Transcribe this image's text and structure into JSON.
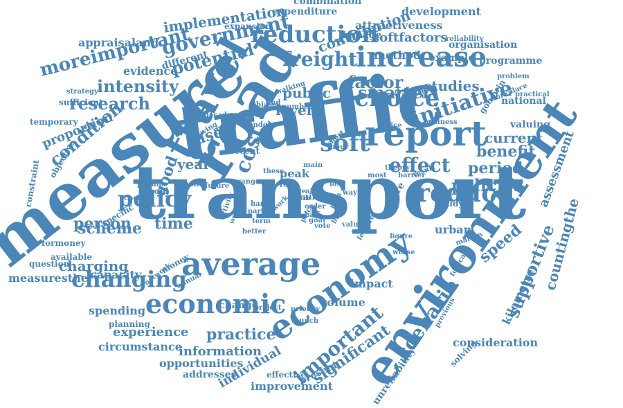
{
  "color": "#4a86b8",
  "background": "#ffffff",
  "words": [
    {
      "text": "transport",
      "weight": 100
    },
    {
      "text": "traffic",
      "weight": 95
    },
    {
      "text": "measure",
      "weight": 85
    },
    {
      "text": "road",
      "weight": 70
    },
    {
      "text": "environment",
      "weight": 65
    },
    {
      "text": "travel",
      "weight": 55
    },
    {
      "text": "report",
      "weight": 50
    },
    {
      "text": "average",
      "weight": 45
    },
    {
      "text": "economy",
      "weight": 45
    },
    {
      "text": "increase",
      "weight": 40
    },
    {
      "text": "economic",
      "weight": 38
    },
    {
      "text": "reduction",
      "weight": 36
    },
    {
      "text": "changing",
      "weight": 34
    },
    {
      "text": "policy",
      "weight": 34
    },
    {
      "text": "choice",
      "weight": 33
    },
    {
      "text": "soft",
      "weight": 32
    },
    {
      "text": "reduce",
      "weight": 32
    },
    {
      "text": "smarter",
      "weight": 32
    },
    {
      "text": "initiative",
      "weight": 30
    },
    {
      "text": "government",
      "weight": 30
    },
    {
      "text": "cost",
      "weight": 28
    },
    {
      "text": "freight",
      "weight": 28
    },
    {
      "text": "important",
      "weight": 28
    },
    {
      "text": "scenario",
      "weight": 26
    },
    {
      "text": "effect",
      "weight": 26
    },
    {
      "text": "moreimportant",
      "weight": 26
    },
    {
      "text": "condition",
      "weight": 24
    },
    {
      "text": "potential",
      "weight": 24
    },
    {
      "text": "intensity",
      "weight": 24
    },
    {
      "text": "research",
      "weight": 24
    },
    {
      "text": "factor",
      "weight": 24
    },
    {
      "text": "supportive",
      "weight": 24
    },
    {
      "text": "policies",
      "weight": 22
    },
    {
      "text": "significant",
      "weight": 22
    },
    {
      "text": "benefit",
      "weight": 22
    },
    {
      "text": "scheme",
      "weight": 22
    },
    {
      "text": "practice",
      "weight": 22
    },
    {
      "text": "period",
      "weight": 22
    },
    {
      "text": "case",
      "weight": 22
    },
    {
      "text": "time",
      "weight": 22
    },
    {
      "text": "person",
      "weight": 22
    },
    {
      "text": "level",
      "weight": 22
    },
    {
      "text": "year",
      "weight": 20
    },
    {
      "text": "charging",
      "weight": 20
    },
    {
      "text": "current",
      "weight": 20
    },
    {
      "text": "public",
      "weight": 20
    },
    {
      "text": "countingthe",
      "weight": 20
    },
    {
      "text": "studies",
      "weight": 20
    },
    {
      "text": "speed",
      "weight": 20
    },
    {
      "text": "good",
      "weight": 20
    },
    {
      "text": "implementation",
      "weight": 18
    },
    {
      "text": "contribution",
      "weight": 18
    },
    {
      "text": "softfactors",
      "weight": 18
    },
    {
      "text": "experience",
      "weight": 18
    },
    {
      "text": "information",
      "weight": 18
    },
    {
      "text": "proportion",
      "weight": 18
    },
    {
      "text": "assessment",
      "weight": 18
    },
    {
      "text": "individual",
      "weight": 18
    },
    {
      "text": "development",
      "weight": 16
    },
    {
      "text": "evidence",
      "weight": 16
    },
    {
      "text": "consideration",
      "weight": 16
    },
    {
      "text": "attractiveness",
      "weight": 16
    },
    {
      "text": "appraisaland",
      "weight": 16
    },
    {
      "text": "kilometre",
      "weight": 16
    },
    {
      "text": "method",
      "weight": 16
    },
    {
      "text": "circumstance",
      "weight": 16
    },
    {
      "text": "opportunities",
      "weight": 16
    },
    {
      "text": "improvement",
      "weight": 16
    },
    {
      "text": "spending",
      "weight": 16
    },
    {
      "text": "capacity",
      "weight": 16
    },
    {
      "text": "measuresthe",
      "weight": 16
    },
    {
      "text": "volume",
      "weight": 16
    },
    {
      "text": "impact",
      "weight": 16
    },
    {
      "text": "peak",
      "weight": 16
    },
    {
      "text": "urban",
      "weight": 16
    },
    {
      "text": "combination",
      "weight": 14
    },
    {
      "text": "expenditure",
      "weight": 14
    },
    {
      "text": "damage",
      "weight": 14
    },
    {
      "text": "organisation",
      "weight": 14
    },
    {
      "text": "example",
      "weight": 14
    },
    {
      "text": "programme",
      "weight": 14
    },
    {
      "text": "different",
      "weight": 14
    },
    {
      "text": "national",
      "weight": 14
    },
    {
      "text": "valuing",
      "weight": 14
    },
    {
      "text": "unreliability",
      "weight": 14
    },
    {
      "text": "change",
      "weight": 14
    },
    {
      "text": "addresses",
      "weight": 14
    },
    {
      "text": "present",
      "weight": 14
    },
    {
      "text": "effective",
      "weight": 12
    },
    {
      "text": "planning",
      "weight": 12
    },
    {
      "text": "specific",
      "weight": 12
    },
    {
      "text": "local",
      "weight": 12
    },
    {
      "text": "school",
      "weight": 12
    },
    {
      "text": "goodwin",
      "weight": 12
    },
    {
      "text": "temporary",
      "weight": 12
    },
    {
      "text": "sufficient",
      "weight": 12
    },
    {
      "text": "study",
      "weight": 12
    },
    {
      "text": "rail",
      "weight": 12
    },
    {
      "text": "more",
      "weight": 12
    },
    {
      "text": "recent",
      "weight": 12
    },
    {
      "text": "many",
      "weight": 12
    },
    {
      "text": "money",
      "weight": 12
    },
    {
      "text": "available",
      "weight": 12
    },
    {
      "text": "constraint",
      "weight": 12
    },
    {
      "text": "objective",
      "weight": 12
    },
    {
      "text": "formoney",
      "weight": 12
    },
    {
      "text": "question",
      "weight": 12
    },
    {
      "text": "solving",
      "weight": 12
    },
    {
      "text": "expansion",
      "weight": 12
    },
    {
      "text": "reliability",
      "weight": 10
    },
    {
      "text": "problem",
      "weight": 10
    },
    {
      "text": "workplace",
      "weight": 10
    },
    {
      "text": "practical",
      "weight": 10
    },
    {
      "text": "strategy",
      "weight": 10
    },
    {
      "text": "business",
      "weight": 10
    },
    {
      "text": "delivery",
      "weight": 10
    },
    {
      "text": "walking",
      "weight": 10
    },
    {
      "text": "network",
      "weight": 10
    },
    {
      "text": "popular",
      "weight": 10
    },
    {
      "text": "choose",
      "weight": 10
    },
    {
      "text": "decade",
      "weight": 10
    },
    {
      "text": "number",
      "weight": 10
    },
    {
      "text": "biases",
      "weight": 10
    },
    {
      "text": "london",
      "weight": 10
    },
    {
      "text": "saving",
      "weight": 10
    },
    {
      "text": "advice",
      "weight": 10
    },
    {
      "text": "value",
      "weight": 10
    },
    {
      "text": "main",
      "weight": 10
    },
    {
      "text": "part",
      "weight": 10
    },
    {
      "text": "term",
      "weight": 10
    },
    {
      "text": "harm",
      "weight": 10
    },
    {
      "text": "plan",
      "weight": 10
    },
    {
      "text": "lose",
      "weight": 10
    },
    {
      "text": "most",
      "weight": 10
    },
    {
      "text": "theory",
      "weight": 10
    },
    {
      "text": "barrier",
      "weight": 10
    },
    {
      "text": "feature",
      "weight": 10
    },
    {
      "text": "figure",
      "weight": 10
    },
    {
      "text": "margin",
      "weight": 10
    },
    {
      "text": "forecast",
      "weight": 10
    },
    {
      "text": "previous",
      "weight": 10
    },
    {
      "text": "worse",
      "weight": 10
    },
    {
      "text": "project",
      "weight": 10
    },
    {
      "text": "priority",
      "weight": 10
    },
    {
      "text": "launch",
      "weight": 10
    },
    {
      "text": "annual",
      "weight": 10
    },
    {
      "text": "better",
      "weight": 10
    },
    {
      "text": "future",
      "weight": 10
    },
    {
      "text": "range",
      "weight": 10
    },
    {
      "text": "result",
      "weight": 10
    },
    {
      "text": "short",
      "weight": 10
    },
    {
      "text": "official",
      "weight": 10
    },
    {
      "text": "these",
      "weight": 10
    },
    {
      "text": "role",
      "weight": 10
    },
    {
      "text": "vote",
      "weight": 10
    },
    {
      "text": "way",
      "weight": 10
    },
    {
      "text": "order",
      "weight": 10
    },
    {
      "text": "price",
      "weight": 10
    },
    {
      "text": "hour",
      "weight": 10
    },
    {
      "text": "find",
      "weight": 10
    },
    {
      "text": "work",
      "weight": 10
    },
    {
      "text": "activity",
      "weight": 10
    },
    {
      "text": "club",
      "weight": 10
    },
    {
      "text": "build",
      "weight": 10
    },
    {
      "text": "woman",
      "weight": 10
    },
    {
      "text": "half",
      "weight": 10
    },
    {
      "text": "goal",
      "weight": 10
    },
    {
      "text": "aid",
      "weight": 10
    },
    {
      "text": "age",
      "weight": 10
    }
  ]
}
